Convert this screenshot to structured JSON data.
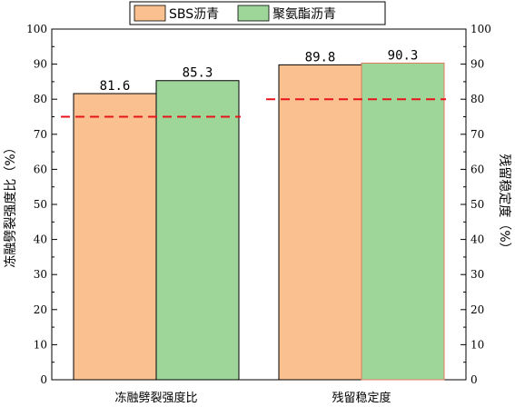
{
  "chart_data": {
    "type": "bar",
    "categories": [
      "冻融劈裂强度比",
      "残留稳定度"
    ],
    "series": [
      {
        "name": "SBS沥青",
        "values": [
          81.6,
          89.8
        ],
        "color": "#FAC090"
      },
      {
        "name": "聚氨酯沥青",
        "values": [
          85.3,
          90.3
        ],
        "color": "#9ED69A"
      }
    ],
    "data_labels": [
      "81.6",
      "85.3",
      "89.8",
      "90.3"
    ],
    "ylabel": "冻融劈裂强度比（%）",
    "ylabel_right": "残留稳定度（%）",
    "ylim": [
      0,
      100
    ],
    "yticks": [
      "0",
      "10",
      "20",
      "30",
      "40",
      "50",
      "60",
      "70",
      "80",
      "90",
      "100"
    ],
    "thresholds": [
      {
        "category": "冻融劈裂强度比",
        "value": 75,
        "color": "#E8141B"
      },
      {
        "category": "残留稳定度",
        "value": 80,
        "color": "#E8141B"
      }
    ],
    "legend_position": "top-center",
    "grid": false
  }
}
